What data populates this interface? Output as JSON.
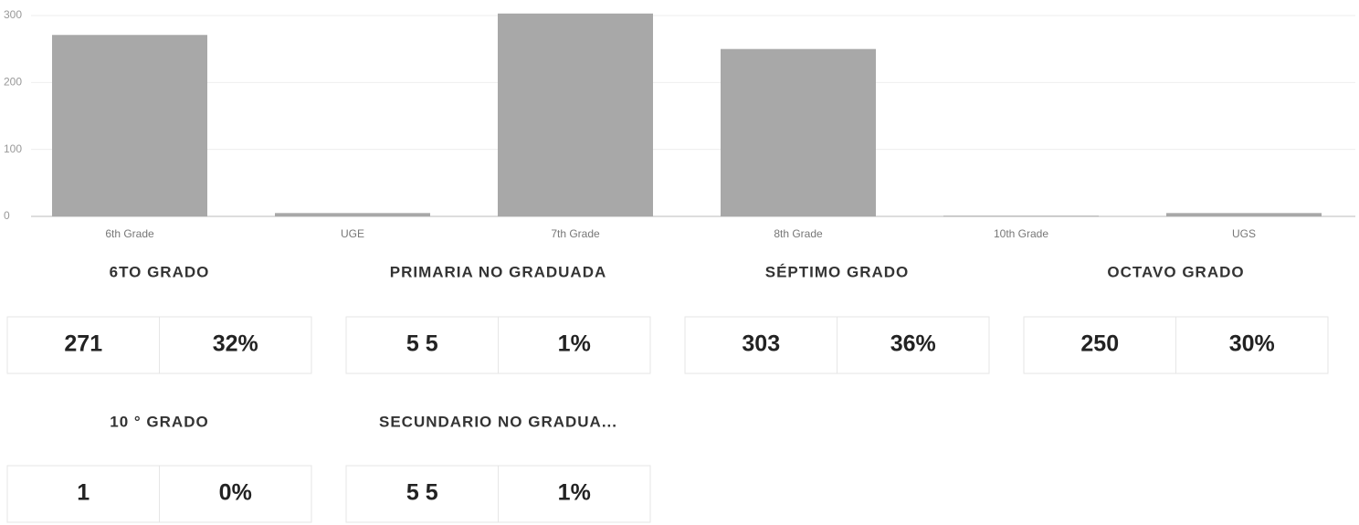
{
  "chart_data": {
    "type": "bar",
    "categories": [
      "6th Grade",
      "UGE",
      "7th Grade",
      "8th Grade",
      "10th Grade",
      "UGS"
    ],
    "values": [
      271,
      5,
      303,
      250,
      1,
      5
    ],
    "color": "#a8a8a8",
    "ylim": [
      0,
      300
    ],
    "yticks": [
      0,
      100,
      200,
      300
    ],
    "grid": true
  },
  "cards": [
    {
      "title": "6TO GRADO",
      "count": "271",
      "percent": "32%"
    },
    {
      "title": "PRIMARIA NO GRADUADA",
      "count": "5 5",
      "percent": "1%"
    },
    {
      "title": "SÉPTIMO GRADO",
      "count": "303",
      "percent": "36%"
    },
    {
      "title": "OCTAVO GRADO",
      "count": "250",
      "percent": "30%"
    },
    {
      "title": "10 ° GRADO",
      "count": "1",
      "percent": "0%"
    },
    {
      "title": "SECUNDARIO NO GRADUA...",
      "count": "5 5",
      "percent": "1%"
    }
  ]
}
